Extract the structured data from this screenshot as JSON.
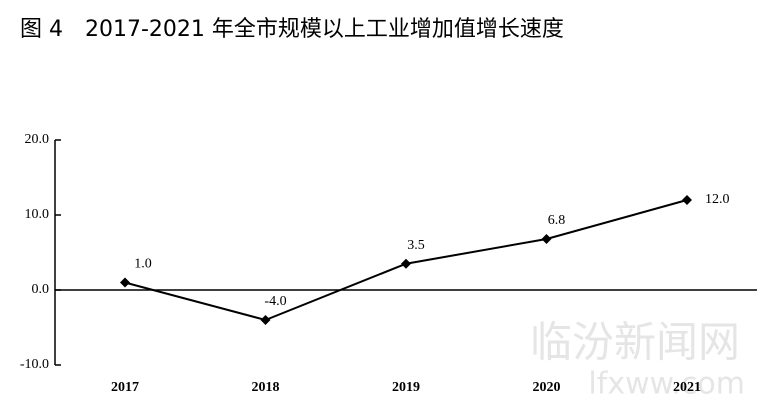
{
  "chart_data": {
    "type": "line",
    "title": "图 4　2017-2021 年全市规模以上工业增加值增长速度",
    "categories": [
      "2017",
      "2018",
      "2019",
      "2020",
      "2021"
    ],
    "series": [
      {
        "color": "#000000",
        "values": [
          1.0,
          -4.0,
          3.5,
          6.8,
          12.0
        ],
        "value_labels": [
          "1.0",
          "-4.0",
          "3.5",
          "6.8",
          "12.0"
        ]
      }
    ],
    "ylim": [
      -10,
      20
    ],
    "yticks": [
      {
        "value": -10,
        "label": "-10.0"
      },
      {
        "value": 0,
        "label": "0.0"
      },
      {
        "value": 10,
        "label": "10.0"
      },
      {
        "value": 20,
        "label": "20.0"
      }
    ],
    "watermark": [
      "临汾新闻网",
      "lfxww.com"
    ]
  }
}
